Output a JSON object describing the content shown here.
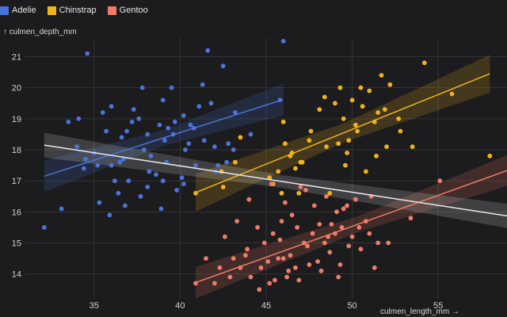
{
  "chart_data": {
    "type": "scatter",
    "title": "",
    "xlabel": "culmen_length_mm →",
    "ylabel": "↑ culmen_depth_mm",
    "xlim": [
      31,
      59
    ],
    "ylim": [
      13.2,
      21.6
    ],
    "xticks": [
      "35",
      "40",
      "45",
      "50",
      "55"
    ],
    "yticks": [
      "14",
      "15",
      "16",
      "17",
      "18",
      "19",
      "20",
      "21"
    ],
    "grid": true,
    "legend_position": "top-left",
    "series": [
      {
        "name": "Adelie",
        "color": "#4a74d9",
        "x": [
          32.1,
          33.1,
          33.5,
          34.0,
          34.4,
          34.6,
          35.0,
          35.3,
          35.7,
          36.0,
          36.2,
          36.4,
          36.6,
          36.7,
          37.0,
          37.2,
          37.6,
          37.8,
          38.1,
          38.1,
          38.6,
          38.8,
          39.0,
          39.2,
          39.5,
          39.6,
          39.8,
          40.2,
          40.3,
          40.6,
          40.9,
          41.1,
          41.4,
          41.6,
          42.0,
          42.2,
          42.5,
          42.8,
          43.2,
          44.1,
          45.8,
          46.0,
          34.5,
          35.9,
          36.8,
          37.3,
          38.2,
          39.3,
          40.1,
          41.3,
          42.7,
          36.5,
          37.9,
          39.7,
          38.9,
          40.8,
          35.2,
          34.1,
          36.0,
          37.7,
          39.0,
          40.5,
          41.8,
          43.1,
          38.3,
          39.1,
          40.2,
          35.5,
          36.9,
          42.1
        ],
        "y": [
          15.5,
          16.1,
          18.9,
          18.1,
          17.4,
          21.1,
          17.9,
          16.3,
          18.6,
          19.4,
          17.0,
          16.6,
          18.4,
          17.7,
          17.0,
          18.9,
          19.0,
          20.0,
          18.5,
          16.8,
          17.2,
          18.8,
          19.6,
          17.6,
          20.0,
          18.5,
          16.7,
          19.1,
          18.0,
          18.8,
          17.5,
          19.4,
          18.3,
          21.2,
          18.1,
          17.5,
          20.7,
          18.2,
          19.2,
          18.5,
          19.6,
          21.5,
          17.7,
          15.9,
          16.2,
          19.3,
          17.3,
          18.7,
          17.1,
          20.1,
          17.6,
          17.6,
          18.0,
          18.9,
          16.1,
          18.7,
          17.5,
          19.0,
          17.5,
          16.5,
          17.0,
          18.2,
          19.5,
          18.0,
          17.8,
          18.3,
          16.9,
          19.2,
          18.6,
          17.3
        ]
      },
      {
        "name": "Chinstrap",
        "color": "#f2b319",
        "x": [
          40.9,
          42.4,
          42.5,
          43.2,
          43.5,
          45.2,
          45.4,
          45.7,
          46.0,
          46.1,
          46.4,
          46.5,
          46.7,
          46.9,
          47.0,
          47.5,
          47.6,
          48.1,
          48.5,
          48.7,
          49.0,
          49.2,
          49.3,
          49.5,
          49.7,
          49.8,
          50.0,
          50.2,
          50.5,
          50.6,
          50.8,
          51.0,
          51.3,
          51.5,
          51.7,
          51.9,
          52.0,
          52.2,
          52.7,
          53.5,
          54.2,
          55.8,
          58.0,
          50.3,
          49.6,
          48.4,
          47.1,
          51.4,
          52.8,
          45.9
        ],
        "y": [
          16.6,
          17.3,
          16.8,
          17.6,
          18.4,
          17.1,
          16.9,
          17.3,
          18.9,
          18.2,
          17.8,
          17.9,
          17.4,
          16.6,
          17.6,
          18.3,
          18.6,
          19.3,
          18.1,
          16.6,
          19.5,
          18.2,
          20.0,
          19.0,
          17.9,
          18.3,
          19.6,
          18.8,
          20.0,
          19.4,
          17.3,
          19.9,
          18.9,
          19.2,
          20.4,
          19.3,
          18.1,
          20.1,
          19.0,
          18.1,
          20.8,
          19.8,
          17.8,
          18.6,
          17.5,
          19.7,
          17.6,
          17.8,
          18.6,
          16.6
        ]
      },
      {
        "name": "Gentoo",
        "color": "#f07b66",
        "x": [
          40.9,
          41.5,
          42.0,
          42.3,
          42.6,
          42.9,
          43.1,
          43.3,
          43.5,
          43.8,
          44.1,
          44.5,
          44.7,
          44.9,
          45.1,
          45.2,
          45.4,
          45.5,
          45.7,
          45.9,
          46.1,
          46.2,
          46.4,
          46.5,
          46.7,
          46.8,
          46.9,
          47.2,
          47.4,
          47.5,
          47.7,
          47.8,
          48.1,
          48.2,
          48.4,
          48.5,
          48.7,
          49.0,
          49.1,
          49.2,
          49.4,
          49.5,
          49.8,
          50.0,
          50.2,
          50.5,
          50.8,
          51.1,
          51.3,
          51.5,
          52.1,
          53.4,
          55.1,
          59.6,
          44.0,
          45.8,
          46.3,
          47.3,
          48.0,
          48.8,
          49.3,
          50.4,
          43.9,
          45.3,
          46.0,
          47.0,
          48.6,
          49.7,
          51.0,
          44.6
        ],
        "y": [
          13.7,
          14.5,
          13.7,
          14.2,
          15.2,
          13.9,
          14.5,
          15.7,
          14.2,
          14.6,
          13.9,
          15.5,
          14.2,
          15.0,
          14.4,
          13.7,
          15.3,
          13.8,
          14.5,
          15.7,
          16.3,
          13.9,
          14.6,
          15.9,
          14.2,
          15.5,
          13.8,
          15.0,
          14.9,
          14.3,
          15.3,
          16.2,
          15.6,
          14.1,
          15.0,
          16.5,
          14.7,
          15.3,
          16.0,
          13.9,
          15.5,
          16.1,
          14.9,
          15.2,
          16.4,
          14.8,
          15.7,
          16.5,
          14.2,
          15.0,
          15.0,
          15.8,
          17.0,
          17.0,
          16.4,
          15.1,
          14.1,
          16.7,
          14.4,
          15.6,
          14.3,
          15.5,
          14.8,
          16.9,
          14.5,
          16.8,
          15.2,
          16.2,
          15.3,
          13.5
        ]
      }
    ],
    "regression_lines": [
      {
        "series": "Adelie",
        "color": "#4a74d9",
        "x": [
          32.1,
          46.0
        ],
        "y": [
          17.15,
          19.62
        ],
        "band": 0.32
      },
      {
        "series": "Chinstrap",
        "color": "#f2b319",
        "x": [
          40.9,
          58.0
        ],
        "y": [
          16.62,
          20.45
        ],
        "band": 0.38
      },
      {
        "series": "Gentoo",
        "color": "#f07b66",
        "x": [
          40.9,
          59.6
        ],
        "y": [
          13.72,
          17.45
        ],
        "band": 0.32
      },
      {
        "series": "all",
        "color": "#e8e8e8",
        "x": [
          32.1,
          59.6
        ],
        "y": [
          18.15,
          15.82
        ],
        "band": 0.25
      }
    ]
  }
}
